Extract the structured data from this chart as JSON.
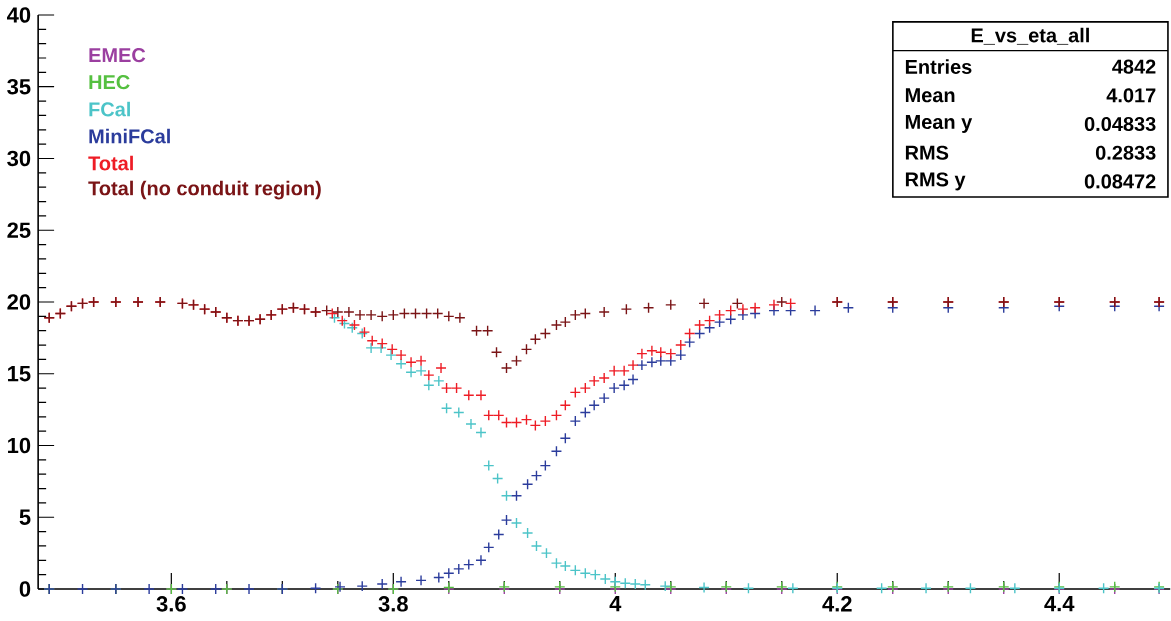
{
  "chart_data": {
    "type": "scatter",
    "marker": "cross",
    "legend": "top left",
    "xlim": [
      3.48,
      4.5
    ],
    "ylim": [
      0,
      40
    ],
    "xticks": [
      3.6,
      3.8,
      4,
      4.2,
      4.4
    ],
    "yticks": [
      0,
      5,
      10,
      15,
      20,
      25,
      30,
      35,
      40
    ],
    "annotations": [
      "E_vs_eta_all",
      "Entries",
      "4842",
      "Mean",
      "4.017",
      "Mean y",
      "0.04833",
      "RMS",
      "0.2833",
      "RMS y",
      "0.08472"
    ],
    "series": [
      {
        "name": "EMEC",
        "color": "#9b3fa0",
        "x": [
          3.49,
          3.55,
          3.6,
          3.65,
          3.7,
          3.75,
          3.8,
          3.85,
          3.9,
          3.95,
          4.0,
          4.05,
          4.1,
          4.15,
          4.2,
          4.25,
          4.3,
          4.35,
          4.4,
          4.45,
          4.49
        ],
        "values": [
          0,
          0,
          0,
          0,
          0,
          0,
          0,
          0,
          0,
          0,
          0,
          0,
          0,
          0,
          0,
          0,
          0,
          0,
          0,
          0,
          0
        ]
      },
      {
        "name": "HEC",
        "color": "#55c040",
        "x": [
          3.49,
          3.55,
          3.6,
          3.65,
          3.7,
          3.75,
          3.8,
          3.85,
          3.9,
          3.95,
          4.0,
          4.05,
          4.1,
          4.15,
          4.2,
          4.25,
          4.3,
          4.35,
          4.4,
          4.45,
          4.49
        ],
        "values": [
          0,
          0,
          0,
          0,
          0,
          0,
          0,
          0.1,
          0.15,
          0.15,
          0.15,
          0.15,
          0.15,
          0.15,
          0.15,
          0.15,
          0.15,
          0.15,
          0.15,
          0.15,
          0.15
        ]
      },
      {
        "name": "FCal",
        "color": "#4cc4c8",
        "x": [
          3.747,
          3.756,
          3.763,
          3.772,
          3.78,
          3.789,
          3.798,
          3.807,
          3.816,
          3.825,
          3.832,
          3.841,
          3.848,
          3.859,
          3.87,
          3.879,
          3.886,
          3.894,
          3.902,
          3.911,
          3.921,
          3.929,
          3.938,
          3.947,
          3.955,
          3.964,
          3.973,
          3.982,
          3.991,
          4.0,
          4.009,
          4.018,
          4.027,
          4.045,
          4.08,
          4.12,
          4.16,
          4.2,
          4.24,
          4.28,
          4.32,
          4.36,
          4.4,
          4.44,
          4.49
        ],
        "values": [
          18.9,
          18.5,
          18.2,
          17.8,
          16.8,
          16.8,
          16.3,
          15.7,
          15.1,
          15.2,
          14.2,
          14.5,
          12.6,
          12.3,
          11.5,
          10.9,
          8.6,
          7.7,
          6.5,
          4.6,
          3.9,
          3,
          2.5,
          1.8,
          1.6,
          1.3,
          1.1,
          1,
          0.7,
          0.5,
          0.4,
          0.35,
          0.3,
          0.2,
          0.1,
          0.05,
          0.05,
          0.05,
          0.05,
          0.05,
          0.05,
          0.05,
          0.05,
          0.05,
          0.05
        ]
      },
      {
        "name": "MiniFCal",
        "color": "#2b3c9c",
        "x": [
          3.49,
          3.52,
          3.55,
          3.58,
          3.61,
          3.64,
          3.67,
          3.7,
          3.73,
          3.752,
          3.772,
          3.79,
          3.807,
          3.825,
          3.841,
          3.85,
          3.859,
          3.868,
          3.879,
          3.886,
          3.895,
          3.902,
          3.911,
          3.921,
          3.929,
          3.937,
          3.947,
          3.955,
          3.964,
          3.973,
          3.981,
          3.99,
          3.999,
          4.008,
          4.016,
          4.024,
          4.033,
          4.041,
          4.05,
          4.059,
          4.067,
          4.076,
          4.085,
          4.094,
          4.104,
          4.115,
          4.126,
          4.143,
          4.158,
          4.18,
          4.21,
          4.25,
          4.3,
          4.35,
          4.4,
          4.45,
          4.49
        ],
        "values": [
          0,
          0,
          0,
          0,
          0,
          0,
          0,
          0,
          0.05,
          0.15,
          0.2,
          0.35,
          0.5,
          0.6,
          0.8,
          1.1,
          1.4,
          1.7,
          2,
          2.9,
          3.8,
          4.8,
          6.5,
          7.3,
          7.9,
          8.6,
          9.6,
          10.5,
          11.7,
          12.3,
          12.8,
          13.3,
          14,
          14.2,
          14.6,
          15.6,
          15.8,
          15.9,
          15.9,
          16.3,
          17.2,
          17.8,
          18.2,
          18.6,
          18.8,
          19.1,
          19.2,
          19.4,
          19.4,
          19.4,
          19.6,
          19.6,
          19.6,
          19.6,
          19.7,
          19.7,
          19.7
        ]
      },
      {
        "name": "Total",
        "color": "#ee1c25",
        "x": [
          3.49,
          3.5,
          3.51,
          3.52,
          3.53,
          3.55,
          3.57,
          3.59,
          3.61,
          3.62,
          3.63,
          3.64,
          3.65,
          3.66,
          3.67,
          3.68,
          3.69,
          3.7,
          3.71,
          3.72,
          3.73,
          3.745,
          3.754,
          3.765,
          3.774,
          3.781,
          3.79,
          3.799,
          3.807,
          3.816,
          3.825,
          3.832,
          3.843,
          3.848,
          3.857,
          3.868,
          3.879,
          3.886,
          3.895,
          3.902,
          3.911,
          3.92,
          3.928,
          3.937,
          3.947,
          3.955,
          3.964,
          3.973,
          3.981,
          3.99,
          3.999,
          4.008,
          4.016,
          4.024,
          4.033,
          4.041,
          4.05,
          4.059,
          4.067,
          4.076,
          4.085,
          4.094,
          4.104,
          4.115,
          4.126,
          4.143,
          4.158,
          4.2,
          4.25,
          4.3,
          4.35,
          4.4,
          4.45,
          4.49
        ],
        "values": [
          18.9,
          19.2,
          19.7,
          19.9,
          20,
          20,
          20,
          20,
          19.9,
          19.8,
          19.5,
          19.3,
          18.9,
          18.7,
          18.7,
          18.8,
          19.1,
          19.5,
          19.6,
          19.5,
          19.3,
          19.2,
          18.7,
          18.4,
          17.9,
          17.3,
          17.1,
          16.7,
          16.3,
          15.8,
          15.9,
          14.9,
          15.4,
          14,
          14,
          13.5,
          13.5,
          12.1,
          12.1,
          11.6,
          11.6,
          11.8,
          11.4,
          11.7,
          12.1,
          12.8,
          13.7,
          14,
          14.5,
          14.7,
          15.2,
          15.2,
          15.6,
          16.4,
          16.6,
          16.5,
          16.4,
          17,
          17.8,
          18.4,
          18.7,
          19.1,
          19.4,
          19.5,
          19.6,
          19.8,
          19.9,
          20,
          20,
          20,
          20,
          20,
          20,
          20
        ]
      },
      {
        "name": "Total (no conduit region)",
        "color": "#7a1416",
        "x": [
          3.49,
          3.5,
          3.51,
          3.52,
          3.53,
          3.55,
          3.57,
          3.59,
          3.61,
          3.62,
          3.63,
          3.64,
          3.65,
          3.66,
          3.67,
          3.68,
          3.69,
          3.7,
          3.71,
          3.72,
          3.73,
          3.74,
          3.75,
          3.76,
          3.77,
          3.78,
          3.79,
          3.8,
          3.81,
          3.82,
          3.83,
          3.84,
          3.85,
          3.86,
          3.875,
          3.885,
          3.893,
          3.902,
          3.911,
          3.92,
          3.928,
          3.937,
          3.947,
          3.955,
          3.964,
          3.973,
          3.99,
          4.01,
          4.03,
          4.05,
          4.08,
          4.11,
          4.15,
          4.2,
          4.25,
          4.3,
          4.35,
          4.4,
          4.45,
          4.49
        ],
        "values": [
          18.9,
          19.2,
          19.7,
          19.9,
          20,
          20,
          20,
          20,
          19.9,
          19.8,
          19.5,
          19.3,
          18.9,
          18.7,
          18.7,
          18.8,
          19.1,
          19.5,
          19.6,
          19.5,
          19.3,
          19.4,
          19.3,
          19.3,
          19.1,
          19.1,
          19,
          19.1,
          19.2,
          19.2,
          19.2,
          19.2,
          19,
          18.9,
          18,
          18,
          16.5,
          15.4,
          15.9,
          16.7,
          17.4,
          17.8,
          18.4,
          18.6,
          19.1,
          19.2,
          19.3,
          19.5,
          19.6,
          19.8,
          19.9,
          19.9,
          20,
          20,
          20,
          20,
          20,
          20,
          20,
          20
        ]
      }
    ]
  }
}
